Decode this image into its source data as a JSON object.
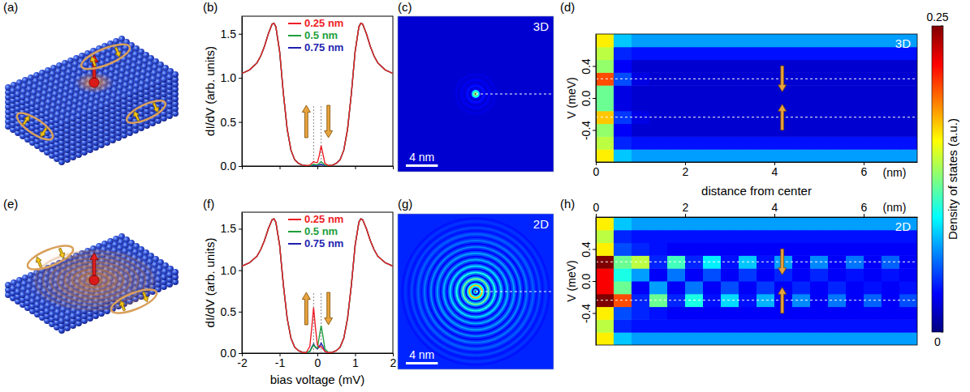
{
  "chart_data": [
    {
      "type": "illustration",
      "label": "(a)"
    },
    {
      "type": "line",
      "label": "(b)",
      "ylabel": "dI/dV (arb. units)",
      "x": [
        -2,
        -1.8,
        -1.6,
        -1.5,
        -1.4,
        -1.3,
        -1.2,
        -1.15,
        -1.1,
        -1.0,
        -0.9,
        -0.8,
        -0.7,
        -0.6,
        -0.5,
        -0.4,
        -0.3,
        -0.2,
        -0.15,
        -0.1,
        -0.05,
        0,
        0.05,
        0.1,
        0.15,
        0.2,
        0.3,
        0.4,
        0.5,
        0.6,
        0.7,
        0.8,
        0.9,
        1.0,
        1.1,
        1.15,
        1.2,
        1.3,
        1.4,
        1.5,
        1.6,
        1.8,
        2
      ],
      "series": [
        {
          "name": "0.25 nm",
          "color": "#ee1c25",
          "values": [
            1.05,
            1.09,
            1.17,
            1.25,
            1.36,
            1.5,
            1.61,
            1.62,
            1.58,
            1.3,
            0.82,
            0.42,
            0.18,
            0.07,
            0.03,
            0.01,
            0.005,
            0.01,
            0.03,
            0.05,
            0.04,
            0.04,
            0.12,
            0.23,
            0.13,
            0.03,
            0.005,
            0.01,
            0.03,
            0.07,
            0.18,
            0.42,
            0.82,
            1.3,
            1.58,
            1.62,
            1.61,
            1.5,
            1.36,
            1.25,
            1.17,
            1.09,
            1.05
          ]
        },
        {
          "name": "0.5 nm",
          "color": "#1e9e3c",
          "values": [
            1.05,
            1.09,
            1.17,
            1.25,
            1.36,
            1.5,
            1.61,
            1.62,
            1.58,
            1.3,
            0.82,
            0.42,
            0.18,
            0.07,
            0.03,
            0.01,
            0.005,
            0.005,
            0.01,
            0.02,
            0.015,
            0.015,
            0.03,
            0.05,
            0.03,
            0.01,
            0.005,
            0.01,
            0.03,
            0.07,
            0.18,
            0.42,
            0.82,
            1.3,
            1.58,
            1.62,
            1.61,
            1.5,
            1.36,
            1.25,
            1.17,
            1.09,
            1.05
          ]
        },
        {
          "name": "0.75 nm",
          "color": "#1f1fb0",
          "values": [
            1.05,
            1.09,
            1.17,
            1.25,
            1.36,
            1.5,
            1.61,
            1.62,
            1.58,
            1.3,
            0.82,
            0.42,
            0.18,
            0.07,
            0.03,
            0.01,
            0.005,
            0.003,
            0.005,
            0.01,
            0.008,
            0.008,
            0.012,
            0.02,
            0.012,
            0.005,
            0.005,
            0.01,
            0.03,
            0.07,
            0.18,
            0.42,
            0.82,
            1.3,
            1.58,
            1.62,
            1.61,
            1.5,
            1.36,
            1.25,
            1.17,
            1.09,
            1.05
          ]
        }
      ],
      "xlim": [
        -2,
        2
      ],
      "xticks": [
        -2,
        -1,
        0,
        1,
        2
      ],
      "ylim": [
        0,
        1.7
      ],
      "yticks": [
        {
          "value": 0,
          "label": "0.0"
        },
        0.5,
        {
          "value": 1,
          "label": "1.0"
        },
        1.5
      ],
      "vlines": [
        -0.1,
        0.1
      ],
      "legend": "upper center",
      "tick_labels": "y"
    },
    {
      "type": "map",
      "label": "(c)",
      "tag": "3D",
      "r": [
        0,
        0.2,
        0.4,
        0.6,
        0.8,
        1,
        1.2,
        1.4,
        1.6,
        1.8,
        2,
        2.2,
        2.4,
        2.6,
        2.8,
        3,
        3.2,
        3.4,
        3.6,
        3.8,
        4,
        4.2,
        4.4,
        4.6,
        4.8,
        5,
        5.2,
        5.4,
        5.6,
        5.8,
        6,
        6.2,
        6.4,
        6.6,
        6.8,
        7,
        7.2,
        7.4,
        7.6,
        7.8,
        8,
        8.2,
        8.4,
        8.6,
        8.8,
        9,
        9.2,
        9.4,
        9.6,
        9.8
      ],
      "values": [
        0.25,
        0.12,
        0.09,
        0.03,
        0.02,
        0.035,
        0.03,
        0.02,
        0.025,
        0.028,
        0.022,
        0.02,
        0.025,
        0.022,
        0.02,
        0.02,
        0.02,
        0.02,
        0.02,
        0.02,
        0.02,
        0.02,
        0.02,
        0.02,
        0.02,
        0.02,
        0.02,
        0.02,
        0.02,
        0.02,
        0.02,
        0.02,
        0.02,
        0.02,
        0.02,
        0.02,
        0.02,
        0.02,
        0.02,
        0.02,
        0.02,
        0.02,
        0.02,
        0.02,
        0.02,
        0.02,
        0.02,
        0.02,
        0.02,
        0.02
      ],
      "background": 0.02,
      "xlim": [
        -9.75,
        9.75
      ],
      "ylim": [
        -9.75,
        9.75
      ],
      "scale_bar": {
        "length": 4,
        "label": "4 nm"
      }
    },
    {
      "type": "heatmap",
      "label": "(d)",
      "tag": "3D",
      "xlabel": "distance from center",
      "x_unit": "(nm)",
      "ylabel": "V (meV)",
      "x": [
        0.2,
        0.6,
        1,
        1.4,
        1.8,
        2.2,
        2.6,
        3,
        3.4,
        3.8,
        4.2,
        4.6,
        5,
        5.4,
        5.8,
        6.2,
        6.6,
        7
      ],
      "y": [
        -0.72,
        -0.56,
        -0.4,
        -0.24,
        -0.08,
        0.08,
        0.24,
        0.4,
        0.56,
        0.72
      ],
      "values": [
        [
          0.16,
          0.08,
          0.07,
          0.07,
          0.07,
          0.07,
          0.07,
          0.07,
          0.07,
          0.07,
          0.07,
          0.07,
          0.07,
          0.07,
          0.07,
          0.07,
          0.07,
          0.07
        ],
        [
          0.14,
          0.04,
          0.035,
          0.035,
          0.035,
          0.035,
          0.035,
          0.035,
          0.035,
          0.035,
          0.035,
          0.035,
          0.035,
          0.035,
          0.035,
          0.035,
          0.035,
          0.035
        ],
        [
          0.13,
          0.03,
          0.02,
          0.02,
          0.02,
          0.02,
          0.02,
          0.02,
          0.02,
          0.02,
          0.02,
          0.02,
          0.02,
          0.02,
          0.02,
          0.02,
          0.02,
          0.02
        ],
        [
          0.17,
          0.045,
          0.025,
          0.02,
          0.02,
          0.02,
          0.02,
          0.02,
          0.02,
          0.02,
          0.02,
          0.02,
          0.02,
          0.02,
          0.02,
          0.02,
          0.02,
          0.02
        ],
        [
          0.12,
          0.025,
          0.02,
          0.02,
          0.02,
          0.02,
          0.02,
          0.02,
          0.02,
          0.02,
          0.02,
          0.02,
          0.02,
          0.02,
          0.02,
          0.02,
          0.02,
          0.02
        ],
        [
          0.12,
          0.025,
          0.02,
          0.02,
          0.02,
          0.02,
          0.02,
          0.02,
          0.02,
          0.02,
          0.02,
          0.02,
          0.02,
          0.02,
          0.02,
          0.02,
          0.02,
          0.02
        ],
        [
          0.2,
          0.05,
          0.025,
          0.02,
          0.02,
          0.02,
          0.02,
          0.02,
          0.02,
          0.02,
          0.02,
          0.02,
          0.02,
          0.02,
          0.02,
          0.02,
          0.02,
          0.02
        ],
        [
          0.13,
          0.03,
          0.02,
          0.02,
          0.02,
          0.02,
          0.02,
          0.02,
          0.02,
          0.02,
          0.02,
          0.02,
          0.02,
          0.02,
          0.02,
          0.02,
          0.02,
          0.02
        ],
        [
          0.14,
          0.04,
          0.035,
          0.035,
          0.035,
          0.035,
          0.035,
          0.035,
          0.035,
          0.035,
          0.035,
          0.035,
          0.035,
          0.035,
          0.035,
          0.035,
          0.035,
          0.035
        ],
        [
          0.16,
          0.08,
          0.07,
          0.07,
          0.07,
          0.07,
          0.07,
          0.07,
          0.07,
          0.07,
          0.07,
          0.07,
          0.07,
          0.07,
          0.07,
          0.07,
          0.07,
          0.07
        ]
      ],
      "xlim": [
        0,
        7.2
      ],
      "xticks": [
        0,
        2,
        4,
        6
      ],
      "ylim": [
        -0.8,
        0.8
      ],
      "yticks": [
        -0.4,
        {
          "value": 0,
          "label": "0.0"
        },
        0.4
      ],
      "hlines": [
        -0.24,
        0.24
      ]
    },
    {
      "type": "illustration",
      "label": "(e)"
    },
    {
      "type": "line",
      "label": "(f)",
      "ylabel": "dI/dV (arb. units)",
      "xlabel": "bias voltage (mV)",
      "x": [
        -2,
        -1.8,
        -1.6,
        -1.5,
        -1.4,
        -1.3,
        -1.2,
        -1.15,
        -1.1,
        -1.0,
        -0.9,
        -0.8,
        -0.7,
        -0.6,
        -0.5,
        -0.4,
        -0.3,
        -0.2,
        -0.15,
        -0.1,
        -0.05,
        0,
        0.05,
        0.1,
        0.15,
        0.2,
        0.3,
        0.4,
        0.5,
        0.6,
        0.7,
        0.8,
        0.9,
        1.0,
        1.1,
        1.15,
        1.2,
        1.3,
        1.4,
        1.5,
        1.6,
        1.8,
        2
      ],
      "series": [
        {
          "name": "0.25 nm",
          "color": "#ee1c25",
          "values": [
            1.05,
            1.09,
            1.17,
            1.25,
            1.36,
            1.5,
            1.61,
            1.62,
            1.58,
            1.3,
            0.82,
            0.42,
            0.18,
            0.07,
            0.03,
            0.01,
            0.005,
            0.08,
            0.3,
            0.55,
            0.3,
            0.1,
            0.07,
            0.08,
            0.05,
            0.02,
            0.005,
            0.01,
            0.03,
            0.07,
            0.18,
            0.42,
            0.82,
            1.3,
            1.58,
            1.62,
            1.61,
            1.5,
            1.36,
            1.25,
            1.17,
            1.09,
            1.05
          ]
        },
        {
          "name": "0.5 nm",
          "color": "#1e9e3c",
          "values": [
            1.05,
            1.09,
            1.17,
            1.25,
            1.36,
            1.5,
            1.61,
            1.62,
            1.58,
            1.3,
            0.82,
            0.42,
            0.18,
            0.07,
            0.03,
            0.01,
            0.005,
            0.02,
            0.06,
            0.1,
            0.07,
            0.06,
            0.2,
            0.33,
            0.2,
            0.05,
            0.005,
            0.01,
            0.03,
            0.07,
            0.18,
            0.42,
            0.82,
            1.3,
            1.58,
            1.62,
            1.61,
            1.5,
            1.36,
            1.25,
            1.17,
            1.09,
            1.05
          ]
        },
        {
          "name": "0.75 nm",
          "color": "#1f1fb0",
          "values": [
            1.05,
            1.09,
            1.17,
            1.25,
            1.36,
            1.5,
            1.61,
            1.62,
            1.58,
            1.3,
            0.82,
            0.42,
            0.18,
            0.07,
            0.03,
            0.01,
            0.005,
            0.02,
            0.07,
            0.11,
            0.07,
            0.05,
            0.08,
            0.12,
            0.08,
            0.02,
            0.005,
            0.01,
            0.03,
            0.07,
            0.18,
            0.42,
            0.82,
            1.3,
            1.58,
            1.62,
            1.61,
            1.5,
            1.36,
            1.25,
            1.17,
            1.09,
            1.05
          ]
        }
      ],
      "xlim": [
        -2,
        2
      ],
      "xticks": [
        -2,
        -1,
        0,
        1,
        2
      ],
      "ylim": [
        0,
        1.7
      ],
      "yticks": [
        {
          "value": 0,
          "label": "0.0"
        },
        0.5,
        {
          "value": 1,
          "label": "1.0"
        },
        1.5
      ],
      "vlines": [
        -0.1,
        0.1
      ],
      "legend": "upper center"
    },
    {
      "type": "map",
      "label": "(g)",
      "tag": "2D",
      "r": [
        0,
        0.2,
        0.4,
        0.6,
        0.8,
        1,
        1.2,
        1.4,
        1.6,
        1.8,
        2,
        2.2,
        2.4,
        2.6,
        2.8,
        3,
        3.2,
        3.4,
        3.6,
        3.8,
        4,
        4.2,
        4.4,
        4.6,
        4.8,
        5,
        5.2,
        5.4,
        5.6,
        5.8,
        6,
        6.2,
        6.4,
        6.6,
        6.8,
        7,
        7.2,
        7.4,
        7.6,
        7.8,
        8,
        8.2,
        8.4,
        8.6,
        8.8,
        9,
        9.2,
        9.4,
        9.6,
        9.8
      ],
      "values": [
        0.25,
        0.08,
        0.02,
        0.09,
        0.17,
        0.09,
        0.03,
        0.07,
        0.12,
        0.07,
        0.03,
        0.06,
        0.1,
        0.06,
        0.03,
        0.055,
        0.085,
        0.055,
        0.03,
        0.05,
        0.075,
        0.05,
        0.03,
        0.05,
        0.07,
        0.05,
        0.03,
        0.045,
        0.065,
        0.045,
        0.03,
        0.045,
        0.06,
        0.045,
        0.035,
        0.045,
        0.055,
        0.045,
        0.035,
        0.04,
        0.05,
        0.04,
        0.035,
        0.04,
        0.045,
        0.04,
        0.035,
        0.04,
        0.04,
        0.04
      ],
      "background": 0.04,
      "xlim": [
        -9.75,
        9.75
      ],
      "ylim": [
        -9.75,
        9.75
      ],
      "scale_bar": {
        "length": 4,
        "label": "4 nm"
      }
    },
    {
      "type": "heatmap",
      "label": "(h)",
      "tag": "2D",
      "x_unit": "(nm)",
      "ylabel": "V (meV)",
      "x": [
        0.2,
        0.6,
        1,
        1.4,
        1.8,
        2.2,
        2.6,
        3,
        3.4,
        3.8,
        4.2,
        4.6,
        5,
        5.4,
        5.8,
        6.2,
        6.6,
        7
      ],
      "y": [
        -0.72,
        -0.56,
        -0.4,
        -0.24,
        -0.08,
        0.08,
        0.24,
        0.4,
        0.56,
        0.72
      ],
      "values": [
        [
          0.16,
          0.08,
          0.07,
          0.07,
          0.07,
          0.07,
          0.07,
          0.07,
          0.07,
          0.07,
          0.07,
          0.07,
          0.07,
          0.07,
          0.07,
          0.07,
          0.07,
          0.07
        ],
        [
          0.14,
          0.04,
          0.035,
          0.035,
          0.035,
          0.035,
          0.035,
          0.035,
          0.035,
          0.035,
          0.035,
          0.035,
          0.035,
          0.035,
          0.035,
          0.035,
          0.035,
          0.035
        ],
        [
          0.16,
          0.05,
          0.04,
          0.035,
          0.03,
          0.03,
          0.03,
          0.03,
          0.03,
          0.03,
          0.03,
          0.03,
          0.03,
          0.03,
          0.03,
          0.03,
          0.03,
          0.03
        ],
        [
          0.25,
          0.2,
          0.04,
          0.12,
          0.04,
          0.1,
          0.035,
          0.085,
          0.035,
          0.075,
          0.03,
          0.065,
          0.03,
          0.06,
          0.03,
          0.055,
          0.03,
          0.05
        ],
        [
          0.22,
          0.12,
          0.03,
          0.07,
          0.03,
          0.06,
          0.03,
          0.05,
          0.03,
          0.045,
          0.03,
          0.04,
          0.03,
          0.04,
          0.03,
          0.035,
          0.03,
          0.035
        ],
        [
          0.22,
          0.1,
          0.07,
          0.03,
          0.06,
          0.03,
          0.05,
          0.03,
          0.045,
          0.03,
          0.04,
          0.03,
          0.04,
          0.03,
          0.035,
          0.03,
          0.035,
          0.03
        ],
        [
          0.25,
          0.12,
          0.14,
          0.04,
          0.11,
          0.04,
          0.09,
          0.035,
          0.08,
          0.035,
          0.07,
          0.03,
          0.065,
          0.03,
          0.06,
          0.03,
          0.055,
          0.03
        ],
        [
          0.16,
          0.05,
          0.04,
          0.035,
          0.03,
          0.03,
          0.03,
          0.03,
          0.03,
          0.03,
          0.03,
          0.03,
          0.03,
          0.03,
          0.03,
          0.03,
          0.03,
          0.03
        ],
        [
          0.14,
          0.04,
          0.035,
          0.035,
          0.035,
          0.035,
          0.035,
          0.035,
          0.035,
          0.035,
          0.035,
          0.035,
          0.035,
          0.035,
          0.035,
          0.035,
          0.035,
          0.035
        ],
        [
          0.16,
          0.08,
          0.07,
          0.07,
          0.07,
          0.07,
          0.07,
          0.07,
          0.07,
          0.07,
          0.07,
          0.07,
          0.07,
          0.07,
          0.07,
          0.07,
          0.07,
          0.07
        ]
      ],
      "xlim": [
        0,
        7.2
      ],
      "xticks": [
        0,
        2,
        4,
        6
      ],
      "ylim": [
        -0.8,
        0.8
      ],
      "yticks": [
        -0.4,
        {
          "value": 0,
          "label": "0.0"
        },
        0.4
      ],
      "hlines": [
        -0.24,
        0.24
      ]
    },
    {
      "type": "colorbar",
      "title": "Density of states (a.u.)",
      "clim": [
        0,
        0.25
      ],
      "cticks": [
        0,
        0.25
      ]
    }
  ]
}
